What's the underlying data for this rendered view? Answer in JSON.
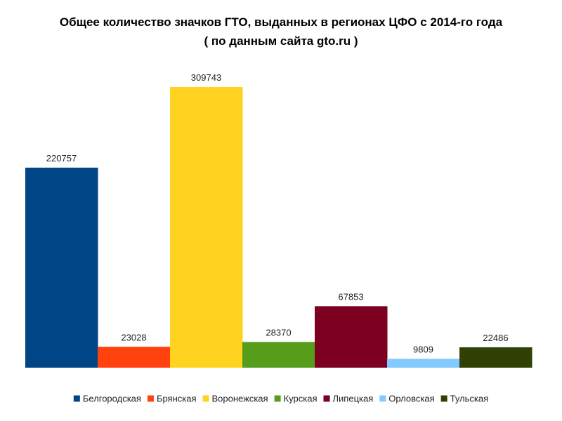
{
  "chart_data": {
    "type": "bar",
    "title": "Общее количество значков ГТО, выданных в регионах ЦФО с 2014-го года",
    "subtitle": "( по данным сайта gto.ru )",
    "categories": [
      "Белгородская",
      "Брянская",
      "Воронежская",
      "Курская",
      "Липецкая",
      "Орловская",
      "Тульская"
    ],
    "values": [
      220757,
      23028,
      309743,
      28370,
      67853,
      9809,
      22486
    ],
    "colors": [
      "#004586",
      "#ff420e",
      "#ffd320",
      "#579d1c",
      "#7e0021",
      "#83caff",
      "#314004"
    ],
    "ylim": [
      0,
      309743
    ],
    "grid": false,
    "legend_position": "bottom"
  }
}
